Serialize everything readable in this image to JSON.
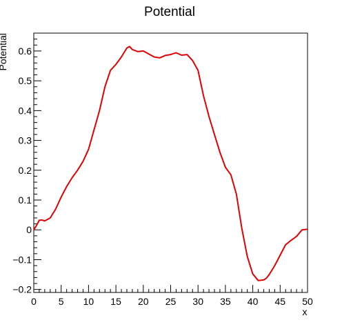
{
  "chart_data": {
    "type": "line",
    "title": "Potential",
    "xlabel": "x",
    "ylabel": "Potential",
    "xlim": [
      0,
      50
    ],
    "ylim": [
      -0.21,
      0.66
    ],
    "x_ticks": [
      0,
      5,
      10,
      15,
      20,
      25,
      30,
      35,
      40,
      45,
      50
    ],
    "x_tick_labels": [
      "0",
      "5",
      "10",
      "15",
      "20",
      "25",
      "30",
      "35",
      "40",
      "45",
      "50"
    ],
    "y_ticks": [
      -0.2,
      -0.1,
      0,
      0.1,
      0.2,
      0.3,
      0.4,
      0.5,
      0.6
    ],
    "y_tick_labels": [
      "−0.2",
      "−0.1",
      "0",
      "0.1",
      "0.2",
      "0.3",
      "0.4",
      "0.5",
      "0.6"
    ],
    "grid": false,
    "legend": "none",
    "line_color": "#e00000",
    "series": [
      {
        "x": [
          0,
          0.5,
          1,
          1.5,
          2,
          3,
          4,
          5,
          6,
          7,
          8,
          9,
          10,
          11,
          12,
          13,
          14,
          15,
          16,
          17,
          17.5,
          18,
          19,
          20,
          21,
          22,
          23,
          24,
          25,
          26,
          27,
          28,
          29,
          30,
          31,
          32,
          33,
          34,
          35,
          36,
          37,
          38,
          39,
          40,
          41,
          42,
          42.5,
          43,
          44,
          45,
          46,
          47,
          48,
          49,
          50
        ],
        "y": [
          0.0,
          0.015,
          0.032,
          0.033,
          0.03,
          0.04,
          0.07,
          0.11,
          0.145,
          0.175,
          0.2,
          0.23,
          0.27,
          0.335,
          0.4,
          0.48,
          0.535,
          0.555,
          0.58,
          0.61,
          0.615,
          0.605,
          0.598,
          0.6,
          0.59,
          0.58,
          0.577,
          0.585,
          0.588,
          0.594,
          0.586,
          0.588,
          0.568,
          0.535,
          0.45,
          0.38,
          0.32,
          0.26,
          0.21,
          0.185,
          0.12,
          0.005,
          -0.09,
          -0.148,
          -0.17,
          -0.168,
          -0.162,
          -0.15,
          -0.12,
          -0.085,
          -0.05,
          -0.035,
          -0.022,
          0.0,
          0.002
        ]
      }
    ]
  }
}
